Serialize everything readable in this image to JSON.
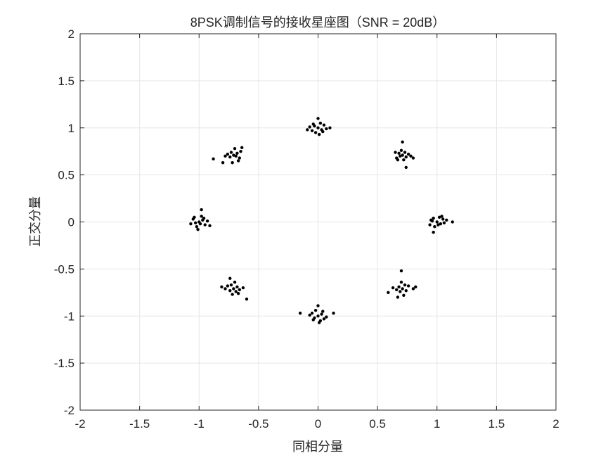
{
  "chart_data": {
    "type": "scatter",
    "title": "8PSK调制信号的接收星座图（SNR = 20dB）",
    "xlabel": "同相分量",
    "ylabel": "正交分量",
    "xlim": [
      -2,
      2
    ],
    "ylim": [
      -2,
      2
    ],
    "xticks": [
      "-2",
      "-1.5",
      "-1",
      "-0.5",
      "0",
      "0.5",
      "1",
      "1.5",
      "2"
    ],
    "yticks": [
      "-2",
      "-1.5",
      "-1",
      "-0.5",
      "0",
      "0.5",
      "1",
      "1.5",
      "2"
    ],
    "grid": true,
    "marker_color": "#000000",
    "points": [
      [
        1.0,
        0.0
      ],
      [
        1.03,
        -0.02
      ],
      [
        0.96,
        0.01
      ],
      [
        1.05,
        0.03
      ],
      [
        0.98,
        -0.05
      ],
      [
        1.06,
        -0.01
      ],
      [
        0.94,
        -0.03
      ],
      [
        1.02,
        0.05
      ],
      [
        0.97,
        0.04
      ],
      [
        1.01,
        -0.03
      ],
      [
        1.08,
        0.02
      ],
      [
        0.97,
        -0.11
      ],
      [
        1.13,
        0.0
      ],
      [
        0.95,
        0.02
      ],
      [
        1.04,
        0.06
      ],
      [
        0.71,
        0.71
      ],
      [
        0.68,
        0.73
      ],
      [
        0.74,
        0.69
      ],
      [
        0.66,
        0.68
      ],
      [
        0.76,
        0.72
      ],
      [
        0.7,
        0.76
      ],
      [
        0.72,
        0.66
      ],
      [
        0.65,
        0.74
      ],
      [
        0.78,
        0.7
      ],
      [
        0.71,
        0.85
      ],
      [
        0.74,
        0.58
      ],
      [
        0.8,
        0.68
      ],
      [
        0.69,
        0.7
      ],
      [
        0.73,
        0.74
      ],
      [
        0.67,
        0.66
      ],
      [
        0.0,
        1.0
      ],
      [
        0.03,
        0.98
      ],
      [
        -0.03,
        1.02
      ],
      [
        0.05,
        1.03
      ],
      [
        -0.05,
        0.97
      ],
      [
        0.02,
        1.05
      ],
      [
        -0.02,
        0.95
      ],
      [
        0.07,
        0.99
      ],
      [
        -0.07,
        1.01
      ],
      [
        0.1,
        1.0
      ],
      [
        -0.09,
        0.98
      ],
      [
        0.0,
        1.1
      ],
      [
        0.01,
        0.93
      ],
      [
        0.04,
        0.96
      ],
      [
        -0.04,
        1.04
      ],
      [
        -0.71,
        0.71
      ],
      [
        -0.68,
        0.73
      ],
      [
        -0.74,
        0.69
      ],
      [
        -0.66,
        0.68
      ],
      [
        -0.76,
        0.72
      ],
      [
        -0.7,
        0.78
      ],
      [
        -0.72,
        0.63
      ],
      [
        -0.65,
        0.75
      ],
      [
        -0.78,
        0.7
      ],
      [
        -0.88,
        0.67
      ],
      [
        -0.8,
        0.63
      ],
      [
        -0.64,
        0.79
      ],
      [
        -0.69,
        0.7
      ],
      [
        -0.73,
        0.74
      ],
      [
        -0.67,
        0.65
      ],
      [
        -1.0,
        0.0
      ],
      [
        -0.97,
        0.02
      ],
      [
        -1.03,
        -0.01
      ],
      [
        -0.95,
        -0.03
      ],
      [
        -1.05,
        0.03
      ],
      [
        -0.98,
        0.06
      ],
      [
        -1.02,
        -0.05
      ],
      [
        -0.93,
        0.01
      ],
      [
        -1.07,
        -0.02
      ],
      [
        -0.98,
        0.13
      ],
      [
        -1.01,
        -0.08
      ],
      [
        -0.91,
        -0.04
      ],
      [
        -1.04,
        0.05
      ],
      [
        -0.99,
        -0.02
      ],
      [
        -0.96,
        0.04
      ],
      [
        -0.71,
        -0.71
      ],
      [
        -0.68,
        -0.69
      ],
      [
        -0.74,
        -0.73
      ],
      [
        -0.66,
        -0.72
      ],
      [
        -0.76,
        -0.68
      ],
      [
        -0.7,
        -0.64
      ],
      [
        -0.72,
        -0.77
      ],
      [
        -0.63,
        -0.7
      ],
      [
        -0.78,
        -0.71
      ],
      [
        -0.74,
        -0.6
      ],
      [
        -0.6,
        -0.82
      ],
      [
        -0.81,
        -0.69
      ],
      [
        -0.69,
        -0.74
      ],
      [
        -0.73,
        -0.67
      ],
      [
        -0.67,
        -0.76
      ],
      [
        0.0,
        -1.0
      ],
      [
        0.03,
        -0.98
      ],
      [
        -0.03,
        -1.02
      ],
      [
        0.05,
        -1.03
      ],
      [
        -0.05,
        -0.97
      ],
      [
        0.02,
        -1.05
      ],
      [
        -0.02,
        -0.94
      ],
      [
        0.07,
        -1.01
      ],
      [
        -0.07,
        -0.99
      ],
      [
        0.13,
        -0.97
      ],
      [
        -0.15,
        -0.97
      ],
      [
        0.0,
        -0.89
      ],
      [
        0.01,
        -1.07
      ],
      [
        0.04,
        -0.95
      ],
      [
        -0.04,
        -1.04
      ],
      [
        0.71,
        -0.71
      ],
      [
        0.68,
        -0.69
      ],
      [
        0.74,
        -0.73
      ],
      [
        0.66,
        -0.72
      ],
      [
        0.76,
        -0.68
      ],
      [
        0.7,
        -0.64
      ],
      [
        0.72,
        -0.78
      ],
      [
        0.63,
        -0.7
      ],
      [
        0.8,
        -0.71
      ],
      [
        0.7,
        -0.52
      ],
      [
        0.59,
        -0.75
      ],
      [
        0.82,
        -0.69
      ],
      [
        0.69,
        -0.74
      ],
      [
        0.73,
        -0.67
      ],
      [
        0.67,
        -0.8
      ]
    ]
  }
}
